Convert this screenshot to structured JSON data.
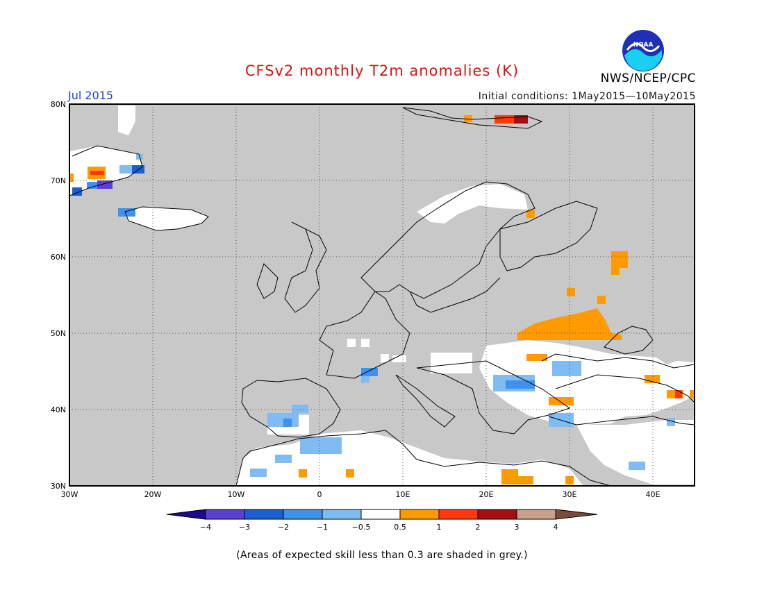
{
  "title": "CFSv2 monthly T2m anomalies (K)",
  "month": "Jul 2015",
  "agency": "NWS/NCEP/CPC",
  "logo_text": "NOAA",
  "initial_conditions": "Initial conditions: 1May2015—10May2015",
  "note": "(Areas of expected skill less than 0.3 are shaded in grey.)",
  "colors": {
    "no_skill": "#c8c8c8",
    "neutral": "#ffffff",
    "coast": "#000000"
  },
  "map": {
    "lon_range": [
      -30,
      45
    ],
    "lat_range": [
      30,
      80
    ],
    "lon_ticks": [
      "30W",
      "20W",
      "10W",
      "0",
      "10E",
      "20E",
      "30E",
      "40E"
    ],
    "lat_ticks": [
      "30N",
      "40N",
      "50N",
      "60N",
      "70N",
      "80N"
    ]
  },
  "colorbar": {
    "labels": [
      "−4",
      "−3",
      "−2",
      "−1",
      "−0.5",
      "0.5",
      "1",
      "2",
      "3",
      "4"
    ],
    "colors": [
      "#1c0a8c",
      "#5a3fd0",
      "#1a5fd2",
      "#3f92ec",
      "#7fbcf4",
      "#ffffff",
      "#ff9a00",
      "#ff3a0a",
      "#a50f0f",
      "#c8a08c",
      "#7a4a3a"
    ]
  }
}
